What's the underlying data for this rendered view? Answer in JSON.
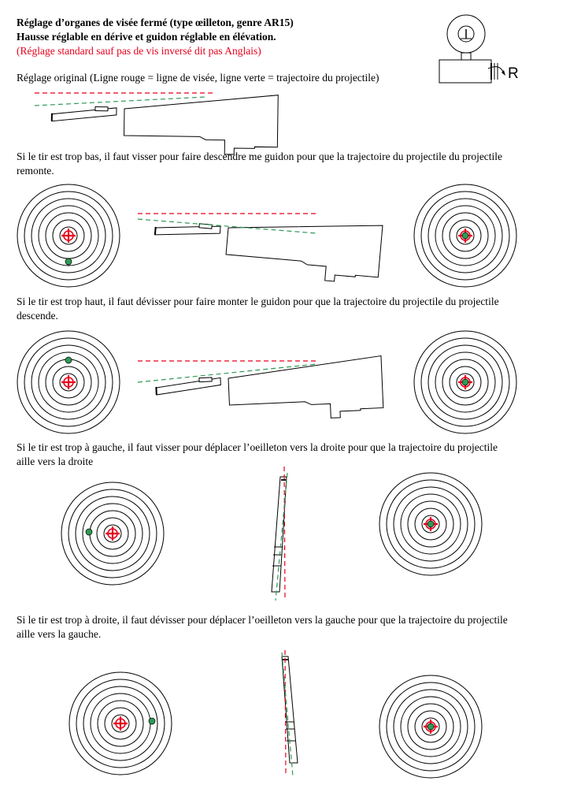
{
  "header": {
    "title_line1": "Réglage d’organes de visée fermé (type œilleton, genre AR15)",
    "title_line2": "Hausse réglable en dérive et guidon réglable en élévation.",
    "note": "(Réglage standard sauf pas de vis inversé dit pas Anglais)",
    "knob_letter": "R"
  },
  "sections": {
    "original": {
      "caption": "Réglage original (Ligne rouge = ligne de visée, ligne verte = trajectoire du projectile)"
    },
    "low": {
      "caption_line1": "Si le tir est trop bas, il faut visser pour faire descendre me guidon pour que la trajectoire du projectile du projectile",
      "caption_line2": "remonte."
    },
    "high": {
      "caption_line1": "Si le tir est trop haut, il faut dévisser pour faire monter le guidon pour que la trajectoire du projectile du projectile",
      "caption_line2": "descende."
    },
    "left": {
      "caption_line1": "Si le tir est trop à gauche, il faut visser pour déplacer l’oeilleton vers la droite pour que la trajectoire du projectile",
      "caption_line2": "aille vers la droite"
    },
    "right": {
      "caption_line1": "Si le tir est trop à droite, il faut dévisser pour déplacer l’oeilleton vers la gauche pour que la trajectoire du projectile",
      "caption_line2": "aille vers la gauche."
    }
  },
  "colors": {
    "sight_line": "#e8001c",
    "trajectory": "#2e9a55",
    "impact": "#2e9a55",
    "outline": "#000000"
  }
}
